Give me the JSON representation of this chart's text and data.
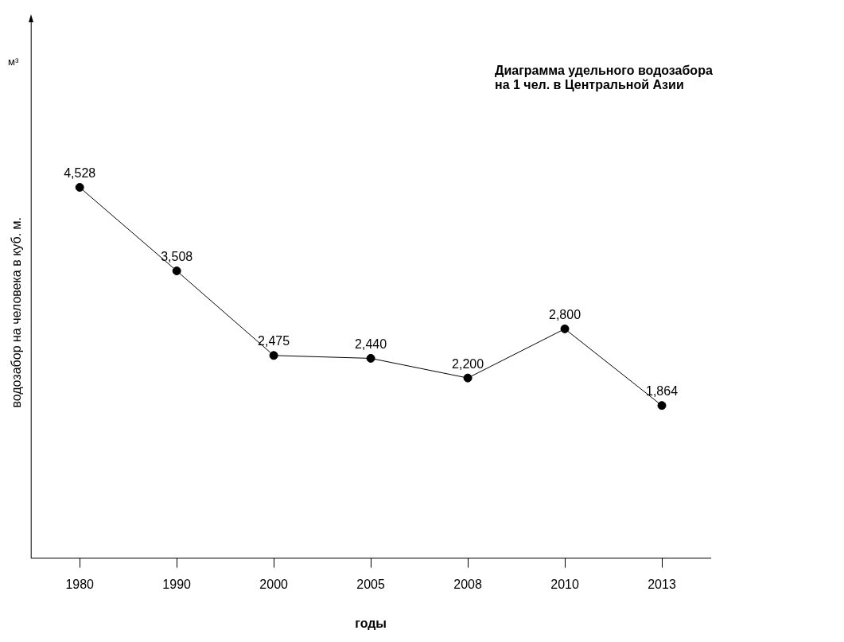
{
  "chart_data": {
    "type": "line",
    "title": "Диаграмма удельного водозабора\nна 1 чел. в Центральной Азии",
    "xlabel": "годы",
    "ylabel": "водозабор на человека в куб. м.",
    "annotations": [
      "м³"
    ],
    "categories": [
      "1980",
      "1990",
      "2000",
      "2005",
      "2008",
      "2010",
      "2013"
    ],
    "series": [
      {
        "color": "#000000",
        "values": [
          4528,
          3508,
          2475,
          2440,
          2200,
          2800,
          1864
        ],
        "value_labels": [
          "4,528",
          "3,508",
          "2,475",
          "2,440",
          "2,200",
          "2,800",
          "1,864"
        ]
      }
    ],
    "marker": "circle",
    "line_style": "solid",
    "grid": false,
    "legend": false
  }
}
